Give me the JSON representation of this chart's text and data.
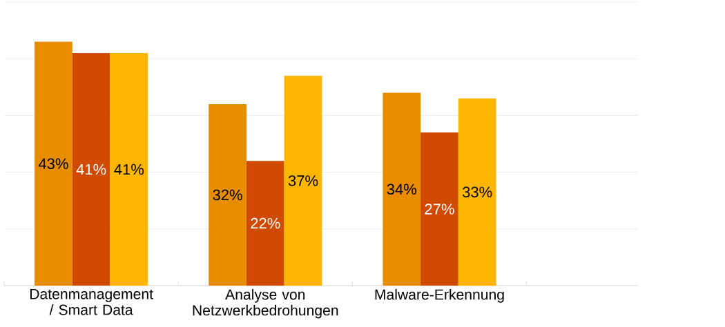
{
  "chart_data": {
    "type": "bar",
    "categories": [
      "Datenmanagement / Smart Data",
      "Analyse von Netzwerkbedrohungen",
      "Malware-Erkennung",
      null
    ],
    "series": [
      {
        "color": "#e88c00",
        "values": [
          43,
          32,
          34,
          null
        ],
        "value_labels": [
          "43%",
          "32%",
          "34%",
          null
        ]
      },
      {
        "color": "#d04a02",
        "values": [
          41,
          22,
          27,
          null
        ],
        "value_labels": [
          "41%",
          "22%",
          "27%",
          null
        ]
      },
      {
        "color": "#ffb600",
        "values": [
          41,
          37,
          33,
          null
        ],
        "value_labels": [
          "41%",
          "37%",
          "33%",
          null
        ]
      }
    ],
    "grid": "y",
    "tick_labels": "x"
  }
}
